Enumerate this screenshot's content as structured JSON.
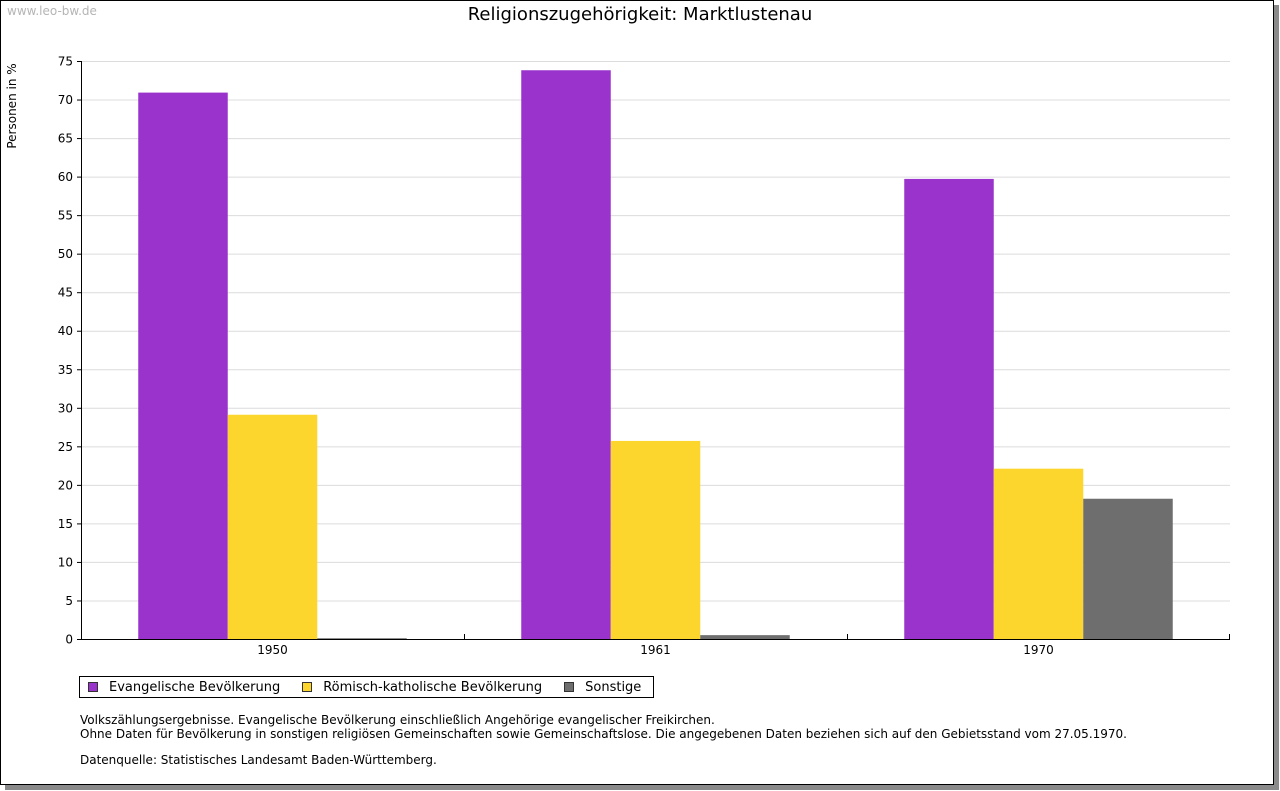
{
  "watermark": "www.leo-bw.de",
  "chart_data": {
    "type": "bar",
    "title": "Religionszugehörigkeit: Marktlustenau",
    "ylabel": "Personen in %",
    "xlabel": "",
    "categories": [
      "1950",
      "1961",
      "1970"
    ],
    "ylim": [
      0,
      75
    ],
    "yticks": [
      0,
      5,
      10,
      15,
      20,
      25,
      30,
      35,
      40,
      45,
      50,
      55,
      60,
      65,
      70,
      75
    ],
    "grid": true,
    "legend_position": "bottom-left",
    "series": [
      {
        "name": "Evangelische Bevölkerung",
        "color": "#9933cc",
        "values": [
          70.9,
          73.8,
          59.7
        ]
      },
      {
        "name": "Römisch-katholische Bevölkerung",
        "color": "#fcd62c",
        "values": [
          29.1,
          25.7,
          22.1
        ]
      },
      {
        "name": "Sonstige",
        "color": "#6e6e6e",
        "values": [
          0.1,
          0.5,
          18.2
        ]
      }
    ]
  },
  "notes": {
    "line1": "Volkszählungsergebnisse. Evangelische Bevölkerung einschließlich Angehörige evangelischer Freikirchen.",
    "line2": "Ohne Daten für Bevölkerung in sonstigen religiösen Gemeinschaften sowie Gemeinschaftslose. Die angegebenen Daten beziehen sich auf den Gebietsstand vom 27.05.1970.",
    "source": "Datenquelle: Statistisches Landesamt Baden-Württemberg."
  }
}
